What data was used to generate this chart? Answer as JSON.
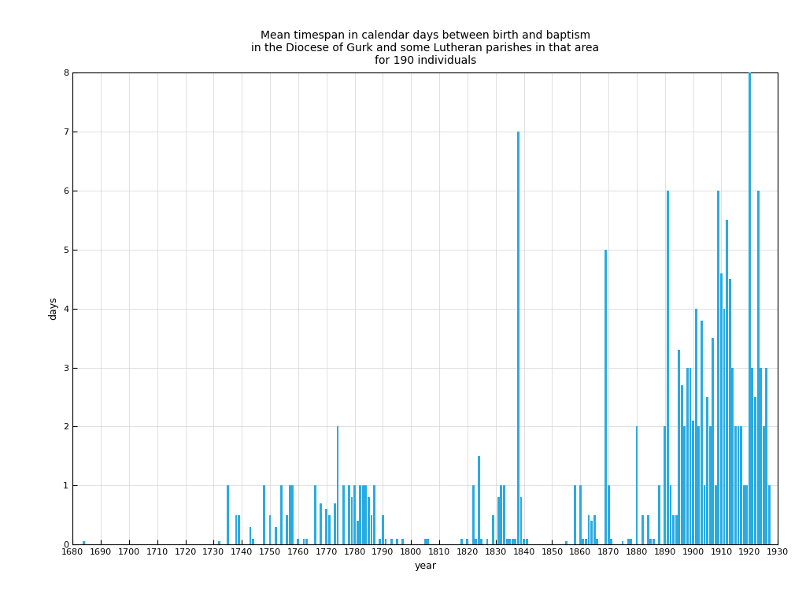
{
  "title_line1": "Mean timespan in calendar days between birth and baptism",
  "title_line2": "in the Diocese of Gurk and some Lutheran parishes in that area",
  "title_line3": "for 190 individuals",
  "xlabel": "year",
  "ylabel": "days",
  "xlim": [
    1680,
    1930
  ],
  "ylim": [
    0,
    8
  ],
  "bar_color": "#29ABE2",
  "bar_width": 1.0,
  "background_color": "#ffffff",
  "grid_color": "#d3d3d3",
  "data": [
    [
      1684,
      0.05
    ],
    [
      1732,
      0.05
    ],
    [
      1735,
      1.0
    ],
    [
      1738,
      0.5
    ],
    [
      1739,
      0.5
    ],
    [
      1743,
      0.3
    ],
    [
      1744,
      0.1
    ],
    [
      1748,
      1.0
    ],
    [
      1750,
      0.5
    ],
    [
      1752,
      0.3
    ],
    [
      1754,
      1.0
    ],
    [
      1756,
      0.5
    ],
    [
      1757,
      1.0
    ],
    [
      1758,
      1.0
    ],
    [
      1760,
      0.1
    ],
    [
      1762,
      0.1
    ],
    [
      1763,
      0.1
    ],
    [
      1766,
      1.0
    ],
    [
      1768,
      0.7
    ],
    [
      1770,
      0.6
    ],
    [
      1771,
      0.5
    ],
    [
      1773,
      0.7
    ],
    [
      1774,
      2.0
    ],
    [
      1776,
      1.0
    ],
    [
      1778,
      1.0
    ],
    [
      1779,
      0.8
    ],
    [
      1780,
      1.0
    ],
    [
      1781,
      0.4
    ],
    [
      1782,
      1.0
    ],
    [
      1783,
      1.0
    ],
    [
      1784,
      1.0
    ],
    [
      1785,
      0.8
    ],
    [
      1786,
      0.5
    ],
    [
      1787,
      1.0
    ],
    [
      1789,
      0.1
    ],
    [
      1790,
      0.5
    ],
    [
      1791,
      0.1
    ],
    [
      1793,
      0.1
    ],
    [
      1795,
      0.1
    ],
    [
      1797,
      0.1
    ],
    [
      1805,
      0.1
    ],
    [
      1806,
      0.1
    ],
    [
      1818,
      0.1
    ],
    [
      1820,
      0.1
    ],
    [
      1822,
      1.0
    ],
    [
      1823,
      0.1
    ],
    [
      1824,
      1.5
    ],
    [
      1825,
      0.1
    ],
    [
      1827,
      0.1
    ],
    [
      1829,
      0.5
    ],
    [
      1831,
      0.8
    ],
    [
      1832,
      1.0
    ],
    [
      1833,
      1.0
    ],
    [
      1834,
      0.1
    ],
    [
      1835,
      0.1
    ],
    [
      1836,
      0.1
    ],
    [
      1837,
      0.1
    ],
    [
      1838,
      7.0
    ],
    [
      1839,
      0.8
    ],
    [
      1840,
      0.1
    ],
    [
      1841,
      0.1
    ],
    [
      1855,
      0.05
    ],
    [
      1858,
      1.0
    ],
    [
      1860,
      1.0
    ],
    [
      1861,
      0.1
    ],
    [
      1862,
      0.1
    ],
    [
      1863,
      0.5
    ],
    [
      1864,
      0.4
    ],
    [
      1865,
      0.5
    ],
    [
      1866,
      0.1
    ],
    [
      1869,
      5.0
    ],
    [
      1870,
      1.0
    ],
    [
      1871,
      0.1
    ],
    [
      1875,
      0.05
    ],
    [
      1877,
      0.1
    ],
    [
      1878,
      0.1
    ],
    [
      1880,
      2.0
    ],
    [
      1882,
      0.5
    ],
    [
      1884,
      0.5
    ],
    [
      1885,
      0.1
    ],
    [
      1886,
      0.1
    ],
    [
      1888,
      1.0
    ],
    [
      1890,
      2.0
    ],
    [
      1891,
      6.0
    ],
    [
      1892,
      1.0
    ],
    [
      1893,
      0.5
    ],
    [
      1894,
      0.5
    ],
    [
      1895,
      3.3
    ],
    [
      1896,
      2.7
    ],
    [
      1897,
      2.0
    ],
    [
      1898,
      3.0
    ],
    [
      1899,
      3.0
    ],
    [
      1900,
      2.1
    ],
    [
      1901,
      4.0
    ],
    [
      1902,
      2.0
    ],
    [
      1903,
      3.8
    ],
    [
      1904,
      1.0
    ],
    [
      1905,
      2.5
    ],
    [
      1906,
      2.0
    ],
    [
      1907,
      3.5
    ],
    [
      1908,
      1.0
    ],
    [
      1909,
      6.0
    ],
    [
      1910,
      4.6
    ],
    [
      1911,
      4.0
    ],
    [
      1912,
      5.5
    ],
    [
      1913,
      4.5
    ],
    [
      1914,
      3.0
    ],
    [
      1915,
      2.0
    ],
    [
      1916,
      2.0
    ],
    [
      1917,
      2.0
    ],
    [
      1918,
      1.0
    ],
    [
      1919,
      1.0
    ],
    [
      1920,
      8.0
    ],
    [
      1921,
      3.0
    ],
    [
      1922,
      2.5
    ],
    [
      1923,
      6.0
    ],
    [
      1924,
      3.0
    ],
    [
      1925,
      2.0
    ],
    [
      1926,
      3.0
    ],
    [
      1927,
      1.0
    ]
  ],
  "xticks": [
    1680,
    1690,
    1700,
    1710,
    1720,
    1730,
    1740,
    1750,
    1760,
    1770,
    1780,
    1790,
    1800,
    1810,
    1820,
    1830,
    1840,
    1850,
    1860,
    1870,
    1880,
    1890,
    1900,
    1910,
    1920,
    1930
  ],
  "yticks": [
    0,
    1,
    2,
    3,
    4,
    5,
    6,
    7,
    8
  ],
  "title_fontsize": 10,
  "axis_label_fontsize": 9,
  "tick_fontsize": 8
}
